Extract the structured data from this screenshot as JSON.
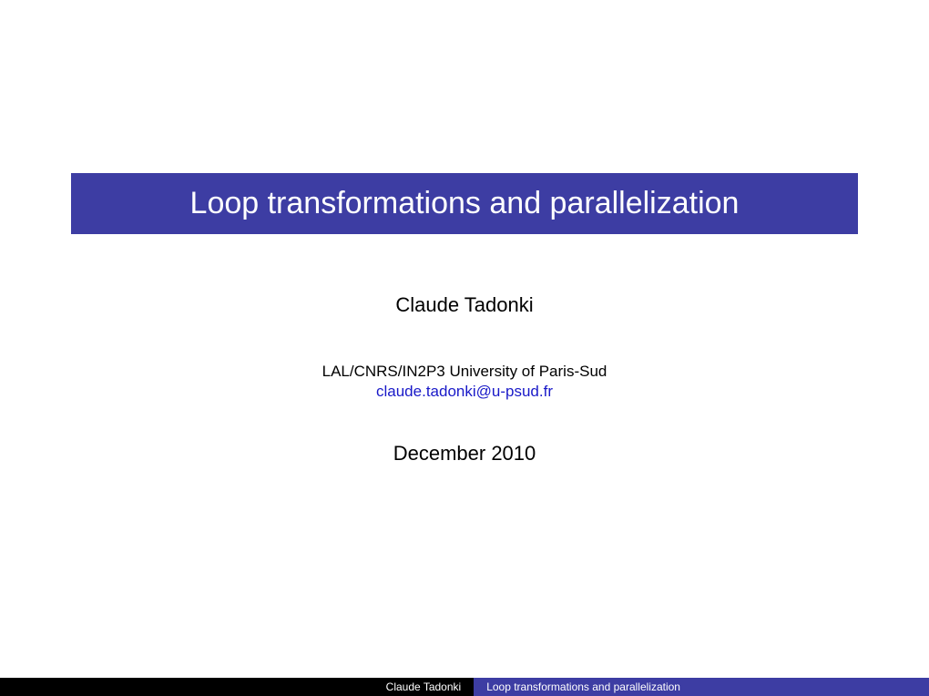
{
  "slide": {
    "title": "Loop transformations and parallelization",
    "author": "Claude Tadonki",
    "affiliation": "LAL/CNRS/IN2P3 University of Paris-Sud",
    "email": "claude.tadonki@u-psud.fr",
    "date": "December 2010"
  },
  "footer": {
    "author": "Claude Tadonki",
    "title": "Loop transformations and parallelization"
  },
  "style": {
    "title_bg_color": "#3d3da3",
    "title_text_color": "#ffffff",
    "title_fontsize": 34,
    "author_fontsize": 22,
    "affiliation_fontsize": 17,
    "email_color": "#1919c8",
    "date_fontsize": 22,
    "footer_left_bg": "#000000",
    "footer_right_bg": "#3d3da3",
    "footer_text_color": "#ffffff",
    "footer_fontsize": 12,
    "background_color": "#ffffff"
  }
}
